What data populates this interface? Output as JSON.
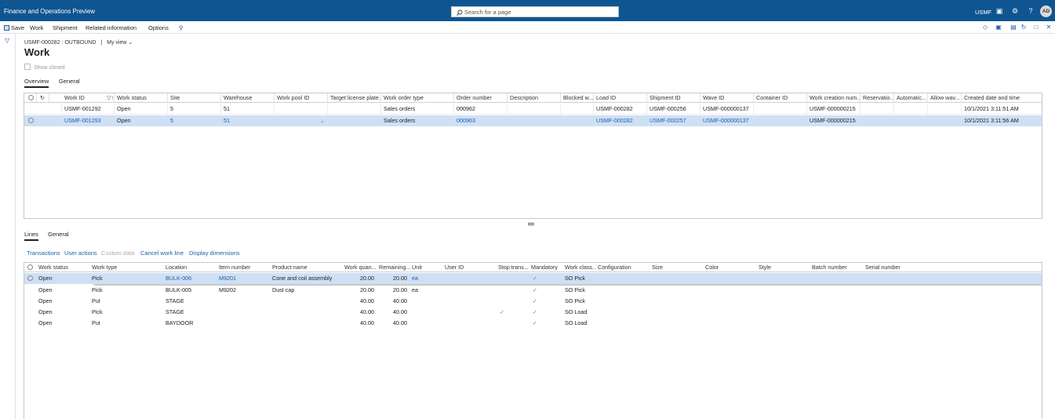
{
  "app": {
    "title": "Finance and Operations Preview",
    "search_placeholder": "Search for a page",
    "company": "USMF",
    "avatar_initials": "AD",
    "header_color": "#0f5592"
  },
  "actionbar": {
    "save": "Save",
    "work": "Work",
    "shipment": "Shipment",
    "related": "Related information",
    "options": "Options"
  },
  "page": {
    "caption_record": "USMF-000282 : OUTBOUND",
    "caption_sep": "|",
    "view": "My view",
    "title": "Work",
    "show_closed": "Show closed",
    "tabs": [
      "Overview",
      "General"
    ]
  },
  "work_grid": {
    "headers": [
      "Work ID",
      "Work status",
      "Site",
      "Warehouse",
      "Work pool ID",
      "Target license plate...",
      "Work order type",
      "Order number",
      "Description",
      "Blocked w...",
      "Load ID",
      "Shipment ID",
      "Wave ID",
      "Container ID",
      "Work creation num...",
      "Reservatio...",
      "Automatic...",
      "Allow wav...",
      "Created date and time"
    ],
    "rows": [
      [
        "USMF-001292",
        "Open",
        "5",
        "51",
        "",
        "",
        "Sales orders",
        "000962",
        "",
        "",
        "USMF-000282",
        "USMF-000256",
        "USMF-000000137",
        "",
        "USMF-000000215",
        "",
        "",
        "",
        "10/1/2021 3:11:51 AM"
      ],
      [
        "USMF-001293",
        "Open",
        "5",
        "51",
        "",
        "",
        "Sales orders",
        "000963",
        "",
        "",
        "USMF-000282",
        "USMF-000257",
        "USMF-000000137",
        "",
        "USMF-000000215",
        "",
        "",
        "",
        "10/1/2021 3:11:56 AM"
      ]
    ]
  },
  "lines": {
    "tabs": [
      "Lines",
      "General"
    ],
    "actions": [
      "Transactions",
      "User actions",
      "Custom data",
      "Cancel work line",
      "Display dimensions"
    ],
    "headers": [
      "Work status",
      "Work type",
      "Location",
      "Item number",
      "Product name",
      "Work quan...",
      "Remaining...",
      "Unit",
      "User ID",
      "Stop trans...",
      "Mandatory",
      "Work class...",
      "Configuration",
      "Size",
      "Color",
      "Style",
      "Batch number",
      "Serial number"
    ],
    "rows": [
      {
        "status": "Open",
        "type": "Pick",
        "location": "BULK-006",
        "item": "M9201",
        "product": "Cone and coil assembly",
        "qty": "20.00",
        "remaining": "20.00",
        "unit": "ea",
        "stop": "",
        "mandatory": "✓",
        "work_class": "SO Pick"
      },
      {
        "status": "Open",
        "type": "Pick",
        "location": "BULK-005",
        "item": "M9202",
        "product": "Dust cap",
        "qty": "20.00",
        "remaining": "20.00",
        "unit": "ea",
        "stop": "",
        "mandatory": "✓",
        "work_class": "SO Pick"
      },
      {
        "status": "Open",
        "type": "Put",
        "location": "STAGE",
        "item": "",
        "product": "",
        "qty": "40.00",
        "remaining": "40.00",
        "unit": "",
        "stop": "",
        "mandatory": "✓",
        "work_class": "SO Pick"
      },
      {
        "status": "Open",
        "type": "Pick",
        "location": "STAGE",
        "item": "",
        "product": "",
        "qty": "40.00",
        "remaining": "40.00",
        "unit": "",
        "stop": "✓",
        "mandatory": "✓",
        "work_class": "SO Load"
      },
      {
        "status": "Open",
        "type": "Put",
        "location": "BAYDOOR",
        "item": "",
        "product": "",
        "qty": "40.00",
        "remaining": "40.00",
        "unit": "",
        "stop": "",
        "mandatory": "✓",
        "work_class": "SO Load"
      }
    ]
  }
}
